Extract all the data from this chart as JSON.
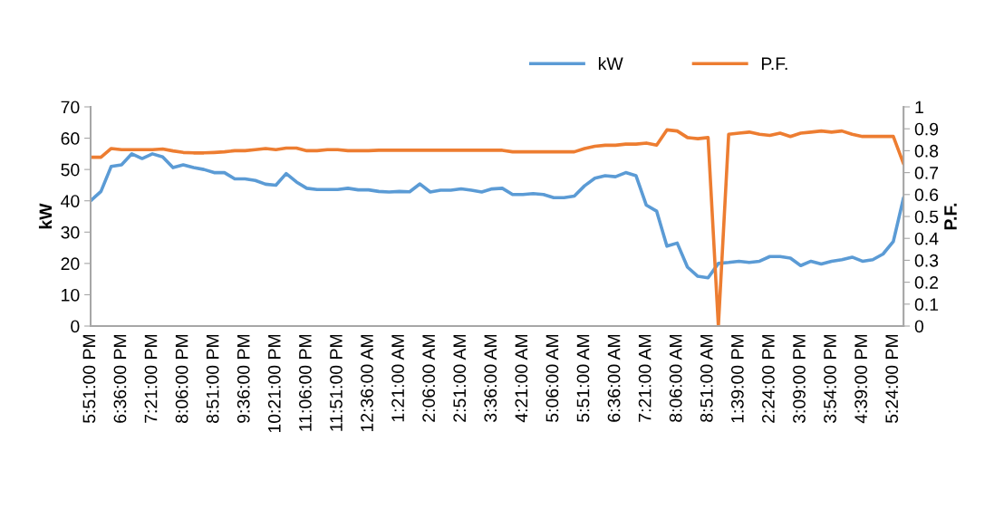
{
  "chart_data": {
    "type": "line",
    "categories": [
      "5:51:00 PM",
      null,
      null,
      "6:36:00 PM",
      null,
      null,
      "7:21:00 PM",
      null,
      null,
      "8:06:00 PM",
      null,
      null,
      "8:51:00 PM",
      null,
      null,
      "9:36:00 PM",
      null,
      null,
      "10:21:00 PM",
      null,
      null,
      "11:06:00 PM",
      null,
      null,
      "11:51:00 PM",
      null,
      null,
      "12:36:00 AM",
      null,
      null,
      "1:21:00 AM",
      null,
      null,
      "2:06:00 AM",
      null,
      null,
      "2:51:00 AM",
      null,
      null,
      "3:36:00 AM",
      null,
      null,
      "4:21:00 AM",
      null,
      null,
      "5:06:00 AM",
      null,
      null,
      "5:51:00 AM",
      null,
      null,
      "6:36:00 AM",
      null,
      null,
      "7:21:00 AM",
      null,
      null,
      "8:06:00 AM",
      null,
      null,
      "8:51:00 AM",
      null,
      null,
      "1:39:00 PM",
      null,
      null,
      "2:24:00 PM",
      null,
      null,
      "3:09:00 PM",
      null,
      null,
      "3:54:00 PM",
      null,
      null,
      "4:39:00 PM",
      null,
      null,
      "5:24:00 PM",
      null
    ],
    "series": [
      {
        "name": "kW",
        "color": "#5b9bd5",
        "values": [
          40,
          43,
          51,
          51.5,
          55,
          53.5,
          55,
          54,
          50.6,
          51.5,
          50.6,
          50,
          49,
          49,
          47,
          47,
          46.5,
          45.3,
          45,
          48.7,
          46,
          44,
          43.6,
          43.6,
          43.6,
          44,
          43.5,
          43.5,
          43,
          42.8,
          43,
          42.9,
          45.4,
          42.8,
          43.4,
          43.4,
          43.8,
          43.4,
          42.8,
          43.8,
          44,
          42,
          42,
          42.3,
          42,
          41,
          41,
          41.5,
          44.8,
          47.2,
          48,
          47.7,
          49,
          48,
          38.6,
          36.7,
          25.5,
          26.5,
          18.8,
          15.9,
          15.4,
          20,
          20.3,
          20.7,
          20.3,
          20.7,
          22.2,
          22.2,
          21.7,
          19.3,
          20.7,
          19.8,
          20.7,
          21.2,
          22,
          20.7,
          21.2,
          23,
          27,
          41
        ]
      },
      {
        "name": "P.F.",
        "color": "#ed7d31",
        "axis": "y2",
        "values": [
          0.77,
          0.77,
          0.81,
          0.805,
          0.805,
          0.805,
          0.805,
          0.808,
          0.799,
          0.792,
          0.79,
          0.79,
          0.792,
          0.795,
          0.8,
          0.8,
          0.805,
          0.81,
          0.805,
          0.812,
          0.812,
          0.8,
          0.8,
          0.805,
          0.805,
          0.8,
          0.8,
          0.8,
          0.802,
          0.802,
          0.802,
          0.802,
          0.802,
          0.802,
          0.802,
          0.802,
          0.802,
          0.802,
          0.802,
          0.802,
          0.802,
          0.795,
          0.795,
          0.795,
          0.795,
          0.795,
          0.795,
          0.795,
          0.81,
          0.82,
          0.825,
          0.825,
          0.83,
          0.83,
          0.835,
          0.825,
          0.895,
          0.89,
          0.86,
          0.855,
          0.86,
          0,
          0.875,
          0.88,
          0.885,
          0.875,
          0.87,
          0.88,
          0.865,
          0.88,
          0.885,
          0.89,
          0.885,
          0.89,
          0.875,
          0.865,
          0.865,
          0.865,
          0.865,
          0.74
        ]
      }
    ],
    "ylabel": "kW",
    "y2label": "P.F.",
    "ylim": [
      0,
      70
    ],
    "yticks": [
      0,
      10,
      20,
      30,
      40,
      50,
      60,
      70
    ],
    "y2lim": [
      0,
      1
    ],
    "y2ticks": [
      0,
      0.1,
      0.2,
      0.3,
      0.4,
      0.5,
      0.6,
      0.7,
      0.8,
      0.9,
      1
    ],
    "legend": "top",
    "grid": false,
    "marker": "none",
    "line_style": "solid"
  }
}
